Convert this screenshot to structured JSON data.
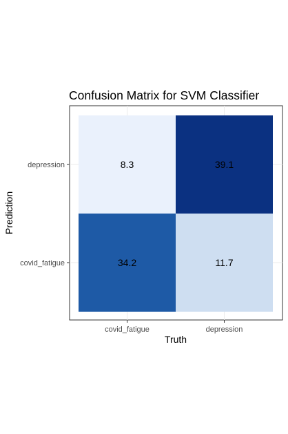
{
  "chart_data": {
    "type": "heatmap",
    "title": "Confusion Matrix for SVM Classifier",
    "xlabel": "Truth",
    "ylabel": "Prediction",
    "x_categories": [
      "covid_fatigue",
      "depression"
    ],
    "y_categories": [
      "covid_fatigue",
      "depression"
    ],
    "cells": [
      {
        "truth": "covid_fatigue",
        "prediction": "depression",
        "value": 8.3,
        "label": "8.3",
        "color": "#eaf1fc"
      },
      {
        "truth": "depression",
        "prediction": "depression",
        "value": 39.1,
        "label": "39.1",
        "color": "#0b3181"
      },
      {
        "truth": "covid_fatigue",
        "prediction": "covid_fatigue",
        "value": 34.2,
        "label": "34.2",
        "color": "#1e5aa6"
      },
      {
        "truth": "depression",
        "prediction": "covid_fatigue",
        "value": 11.7,
        "label": "11.7",
        "color": "#cedef1"
      }
    ],
    "colorscale": "Blues",
    "grid": true,
    "legend": "none"
  }
}
